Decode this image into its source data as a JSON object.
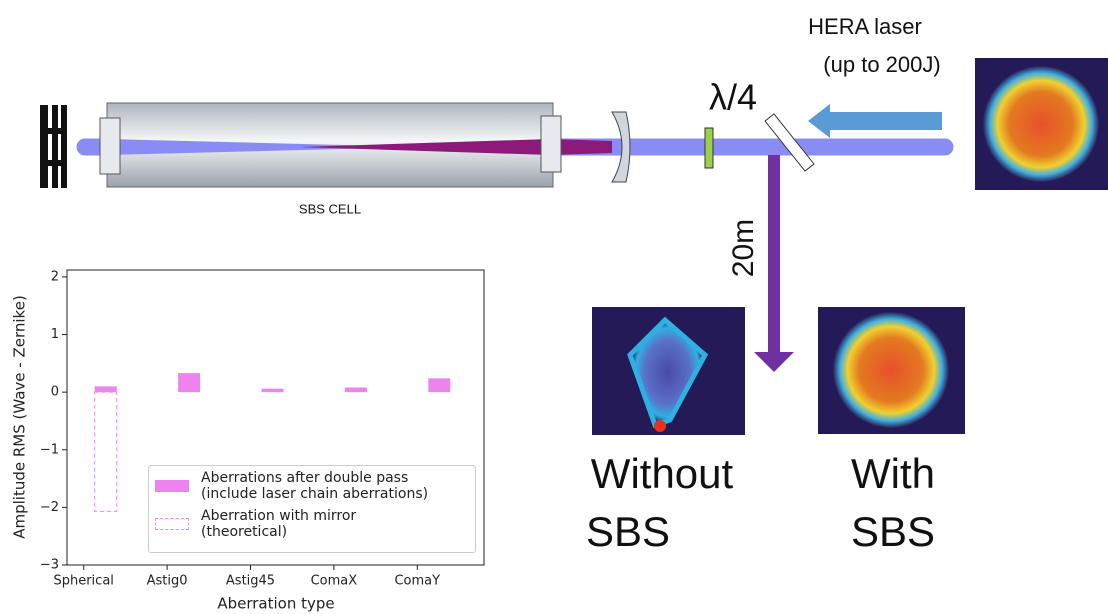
{
  "diagram": {
    "laser": {
      "name": "HERA laser",
      "energy": "(up to 200J)"
    },
    "waveplate": "λ/4",
    "cell": "SBS CELL",
    "distance": "20m",
    "profiles": [
      {
        "lines": [
          "Without",
          "SBS"
        ]
      },
      {
        "lines": [
          "With",
          "SBS"
        ]
      }
    ]
  },
  "chart_data": {
    "type": "bar",
    "x_label": "Aberration type",
    "y_label": "Amplitude RMS (Wave - Zernike)",
    "categories": [
      "Spherical",
      "Astig0",
      "Astig45",
      "ComaX",
      "ComaY"
    ],
    "series": [
      {
        "name": "Aberrations after double pass\n(include laser chain aberrations)",
        "color": "#ee82ee",
        "style": "solid",
        "values": [
          0.1,
          0.33,
          0.06,
          0.08,
          0.24
        ]
      },
      {
        "name": "Aberration with mirror\n(theoretical)",
        "color": "#ee82ee",
        "style": "dashed",
        "values": [
          -2.07,
          null,
          null,
          null,
          null
        ]
      }
    ],
    "ylim": [
      -3,
      2.12
    ],
    "yticks": [
      {
        "value": -3,
        "label": "−3"
      },
      {
        "value": -2,
        "label": "−2"
      },
      {
        "value": -1,
        "label": "−1"
      },
      0,
      1,
      2
    ],
    "legend": "lower right"
  }
}
